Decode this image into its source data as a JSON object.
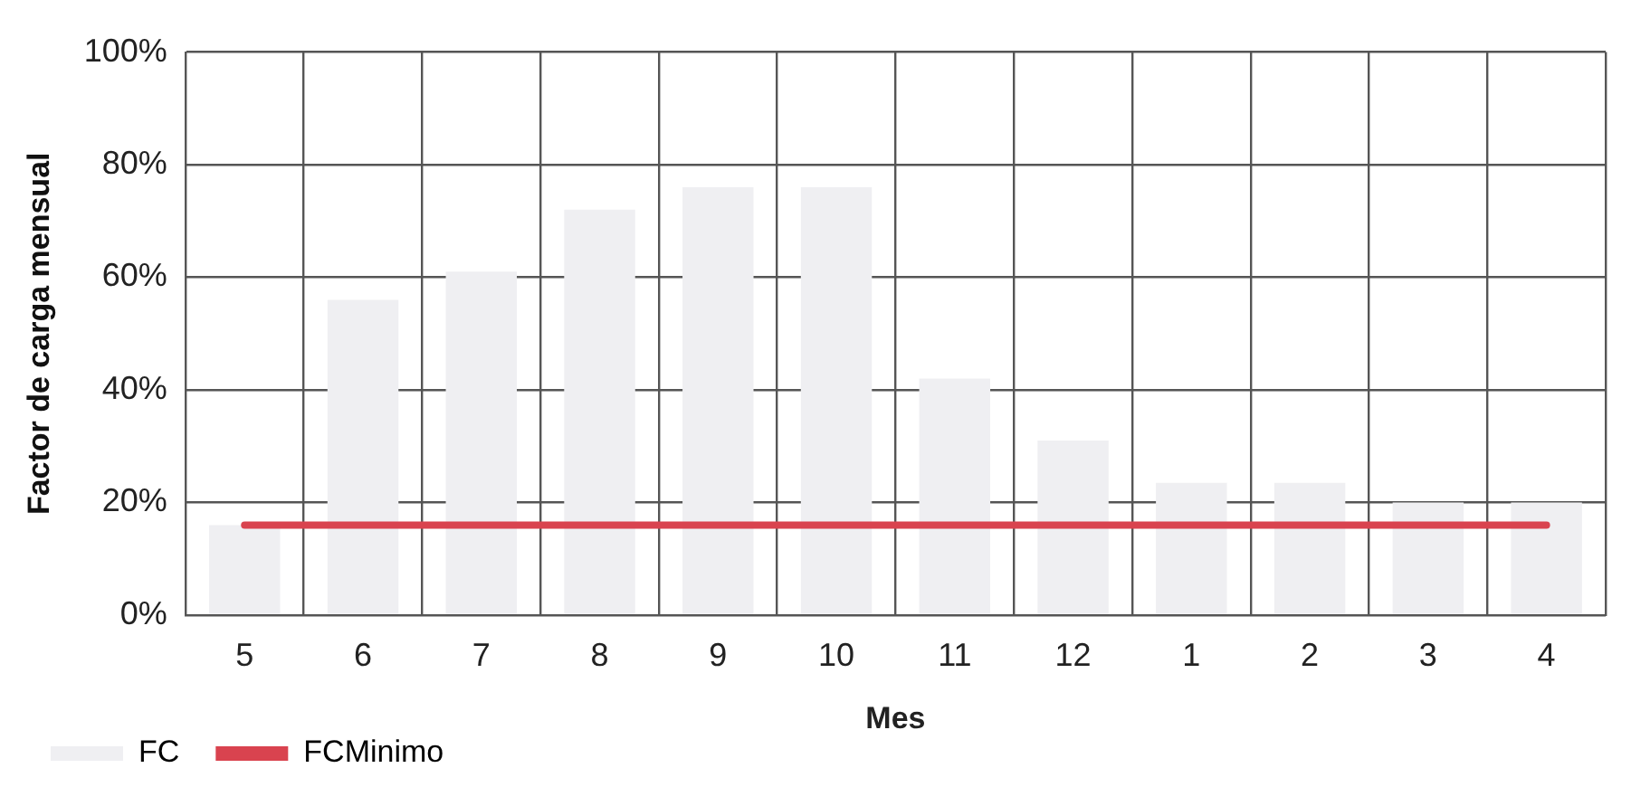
{
  "chart_data": {
    "type": "bar",
    "xlabel": "Mes",
    "ylabel": "Factor de carga mensual",
    "categories": [
      "5",
      "6",
      "7",
      "8",
      "9",
      "10",
      "11",
      "12",
      "1",
      "2",
      "3",
      "4"
    ],
    "series": [
      {
        "name": "FC",
        "color": "#efeff2",
        "values": [
          16,
          56,
          61,
          72,
          76,
          76,
          42,
          31,
          23.5,
          23.5,
          20,
          20
        ]
      },
      {
        "name": "FCMinimo",
        "type": "line",
        "color": "#d9434f",
        "values": [
          16,
          16,
          16,
          16,
          16,
          16,
          16,
          16,
          16,
          16,
          16,
          16
        ]
      }
    ],
    "ylim": [
      0,
      100
    ],
    "yticks": [
      {
        "value": 0,
        "label": "0%"
      },
      {
        "value": 20,
        "label": "20%"
      },
      {
        "value": 40,
        "label": "40%"
      },
      {
        "value": 60,
        "label": "60%"
      },
      {
        "value": 80,
        "label": "80%"
      },
      {
        "value": 100,
        "label": "100%"
      }
    ],
    "grid": true,
    "legend": "bottom left",
    "marker": "none",
    "line_style": "solid"
  }
}
